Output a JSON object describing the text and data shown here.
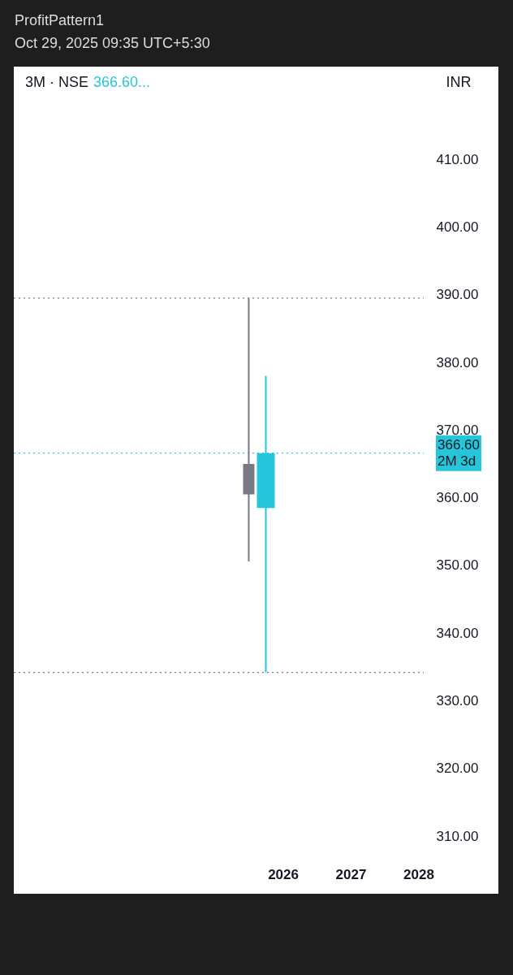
{
  "chart_data": {
    "type": "candlestick",
    "title": "3M · NSE",
    "subtitle": "366.60...",
    "annotations": [
      "ProfitPattern1",
      "Oct 29, 2025 09:35 UTC+5:30",
      "INR"
    ],
    "x": [
      "2025-07",
      "2025-10"
    ],
    "ohlc": [
      [
        365.0,
        389.5,
        350.6,
        360.5
      ],
      [
        358.5,
        378.0,
        334.2,
        366.6
      ]
    ],
    "colors": [
      "#787b86",
      "#26c6da"
    ],
    "xlim": [
      "2022-02-03",
      "2029-02-13"
    ],
    "xticks": [
      "2026",
      "2027",
      "2028"
    ],
    "ylim": [
      301.5,
      423.7
    ],
    "yticks": [
      {
        "value": 310,
        "label": "310.00"
      },
      {
        "value": 320,
        "label": "320.00"
      },
      {
        "value": 330,
        "label": "330.00"
      },
      {
        "value": 340,
        "label": "340.00"
      },
      {
        "value": 350,
        "label": "350.00"
      },
      {
        "value": 360,
        "label": "360.00"
      },
      {
        "value": 370,
        "label": "370.00"
      },
      {
        "value": 380,
        "label": "380.00"
      },
      {
        "value": 390,
        "label": "390.00"
      },
      {
        "value": 400,
        "label": "400.00"
      },
      {
        "value": 410,
        "label": "410.00"
      }
    ],
    "ref_lines": [
      {
        "axis": "y",
        "value": 389.5,
        "color": "#787b86",
        "line_style": "dotted"
      },
      {
        "axis": "y",
        "value": 334.2,
        "color": "#787b86",
        "line_style": "dotted"
      },
      {
        "axis": "y",
        "value": 366.6,
        "color": "#26c6da",
        "line_style": "dotted",
        "label": "366.60\n2M 3d"
      }
    ],
    "grid": false
  }
}
